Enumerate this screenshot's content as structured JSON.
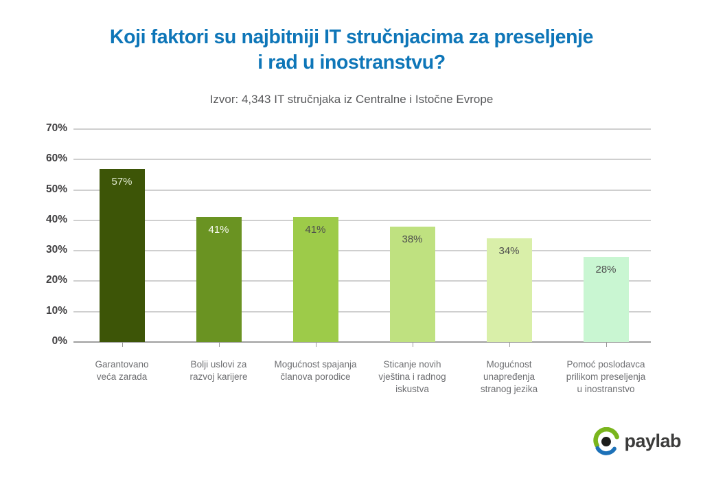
{
  "header": {
    "title_line1": "Koji faktori su najbitniji IT stručnjacima za preseljenje",
    "title_line2": "i rad u inostranstvu?",
    "title_color": "#0e76b8",
    "subtitle": "Izvor: 4,343 IT stručnjaka iz Centralne i Istočne Evrope"
  },
  "chart_data": {
    "type": "bar",
    "title": "Koji faktori su najbitniji IT stručnjacima za preseljenje i rad u inostranstvu?",
    "subtitle": "Izvor: 4,343 IT stručnjaka iz Centralne i Istočne Evrope",
    "categories": [
      "Garantovano veća zarada",
      "Bolji uslovi za razvoj karijere",
      "Mogućnost spajanja članova porodice",
      "Sticanje novih vještina i radnog iskustva",
      "Mogućnost unapređenja stranog jezika",
      "Pomoć poslodavca prilikom preseljenja u inostranstvo"
    ],
    "category_lines": [
      [
        "Garantovano",
        "veća zarada"
      ],
      [
        "Bolji uslovi za",
        "razvoj karijere"
      ],
      [
        "Mogućnost spajanja",
        "članova porodice"
      ],
      [
        "Sticanje novih",
        "vještina i radnog",
        "iskustva"
      ],
      [
        "Mogućnost",
        "unapređenja",
        "stranog jezika"
      ],
      [
        "Pomoć poslodavca",
        "prilikom preseljenja",
        "u inostranstvo"
      ]
    ],
    "values": [
      57,
      41,
      41,
      38,
      34,
      28
    ],
    "value_labels": [
      "57%",
      "41%",
      "41%",
      "38%",
      "34%",
      "28%"
    ],
    "bar_colors": [
      "#3d5507",
      "#6a9322",
      "#9dcb49",
      "#bfe180",
      "#d9efa9",
      "#c9f6d2"
    ],
    "value_label_colors": [
      "#e3ecd2",
      "#f8faf2",
      "#4d4d4d",
      "#4d4d4d",
      "#4d4d4d",
      "#4d4d4d"
    ],
    "xlabel": "",
    "ylabel": "",
    "ylim": [
      0,
      70
    ],
    "yticks": [
      0,
      10,
      20,
      30,
      40,
      50,
      60,
      70
    ],
    "ytick_labels": [
      "0%",
      "10%",
      "20%",
      "30%",
      "40%",
      "50%",
      "60%",
      "70%"
    ],
    "grid": true,
    "legend": false
  },
  "colors": {
    "title_blue": "#0e76b8",
    "gridline": "#cfcfcf",
    "axis_baseline": "#9e9e9e",
    "axis_tick_labels": "#414042",
    "category_labels": "#6d6e71",
    "logo_green": "#7ab51d",
    "logo_blue": "#1d71b8",
    "logo_pupil": "#1d1d1b",
    "logo_text": "#3c3c3b"
  },
  "footer": {
    "logo_text": "paylab"
  }
}
